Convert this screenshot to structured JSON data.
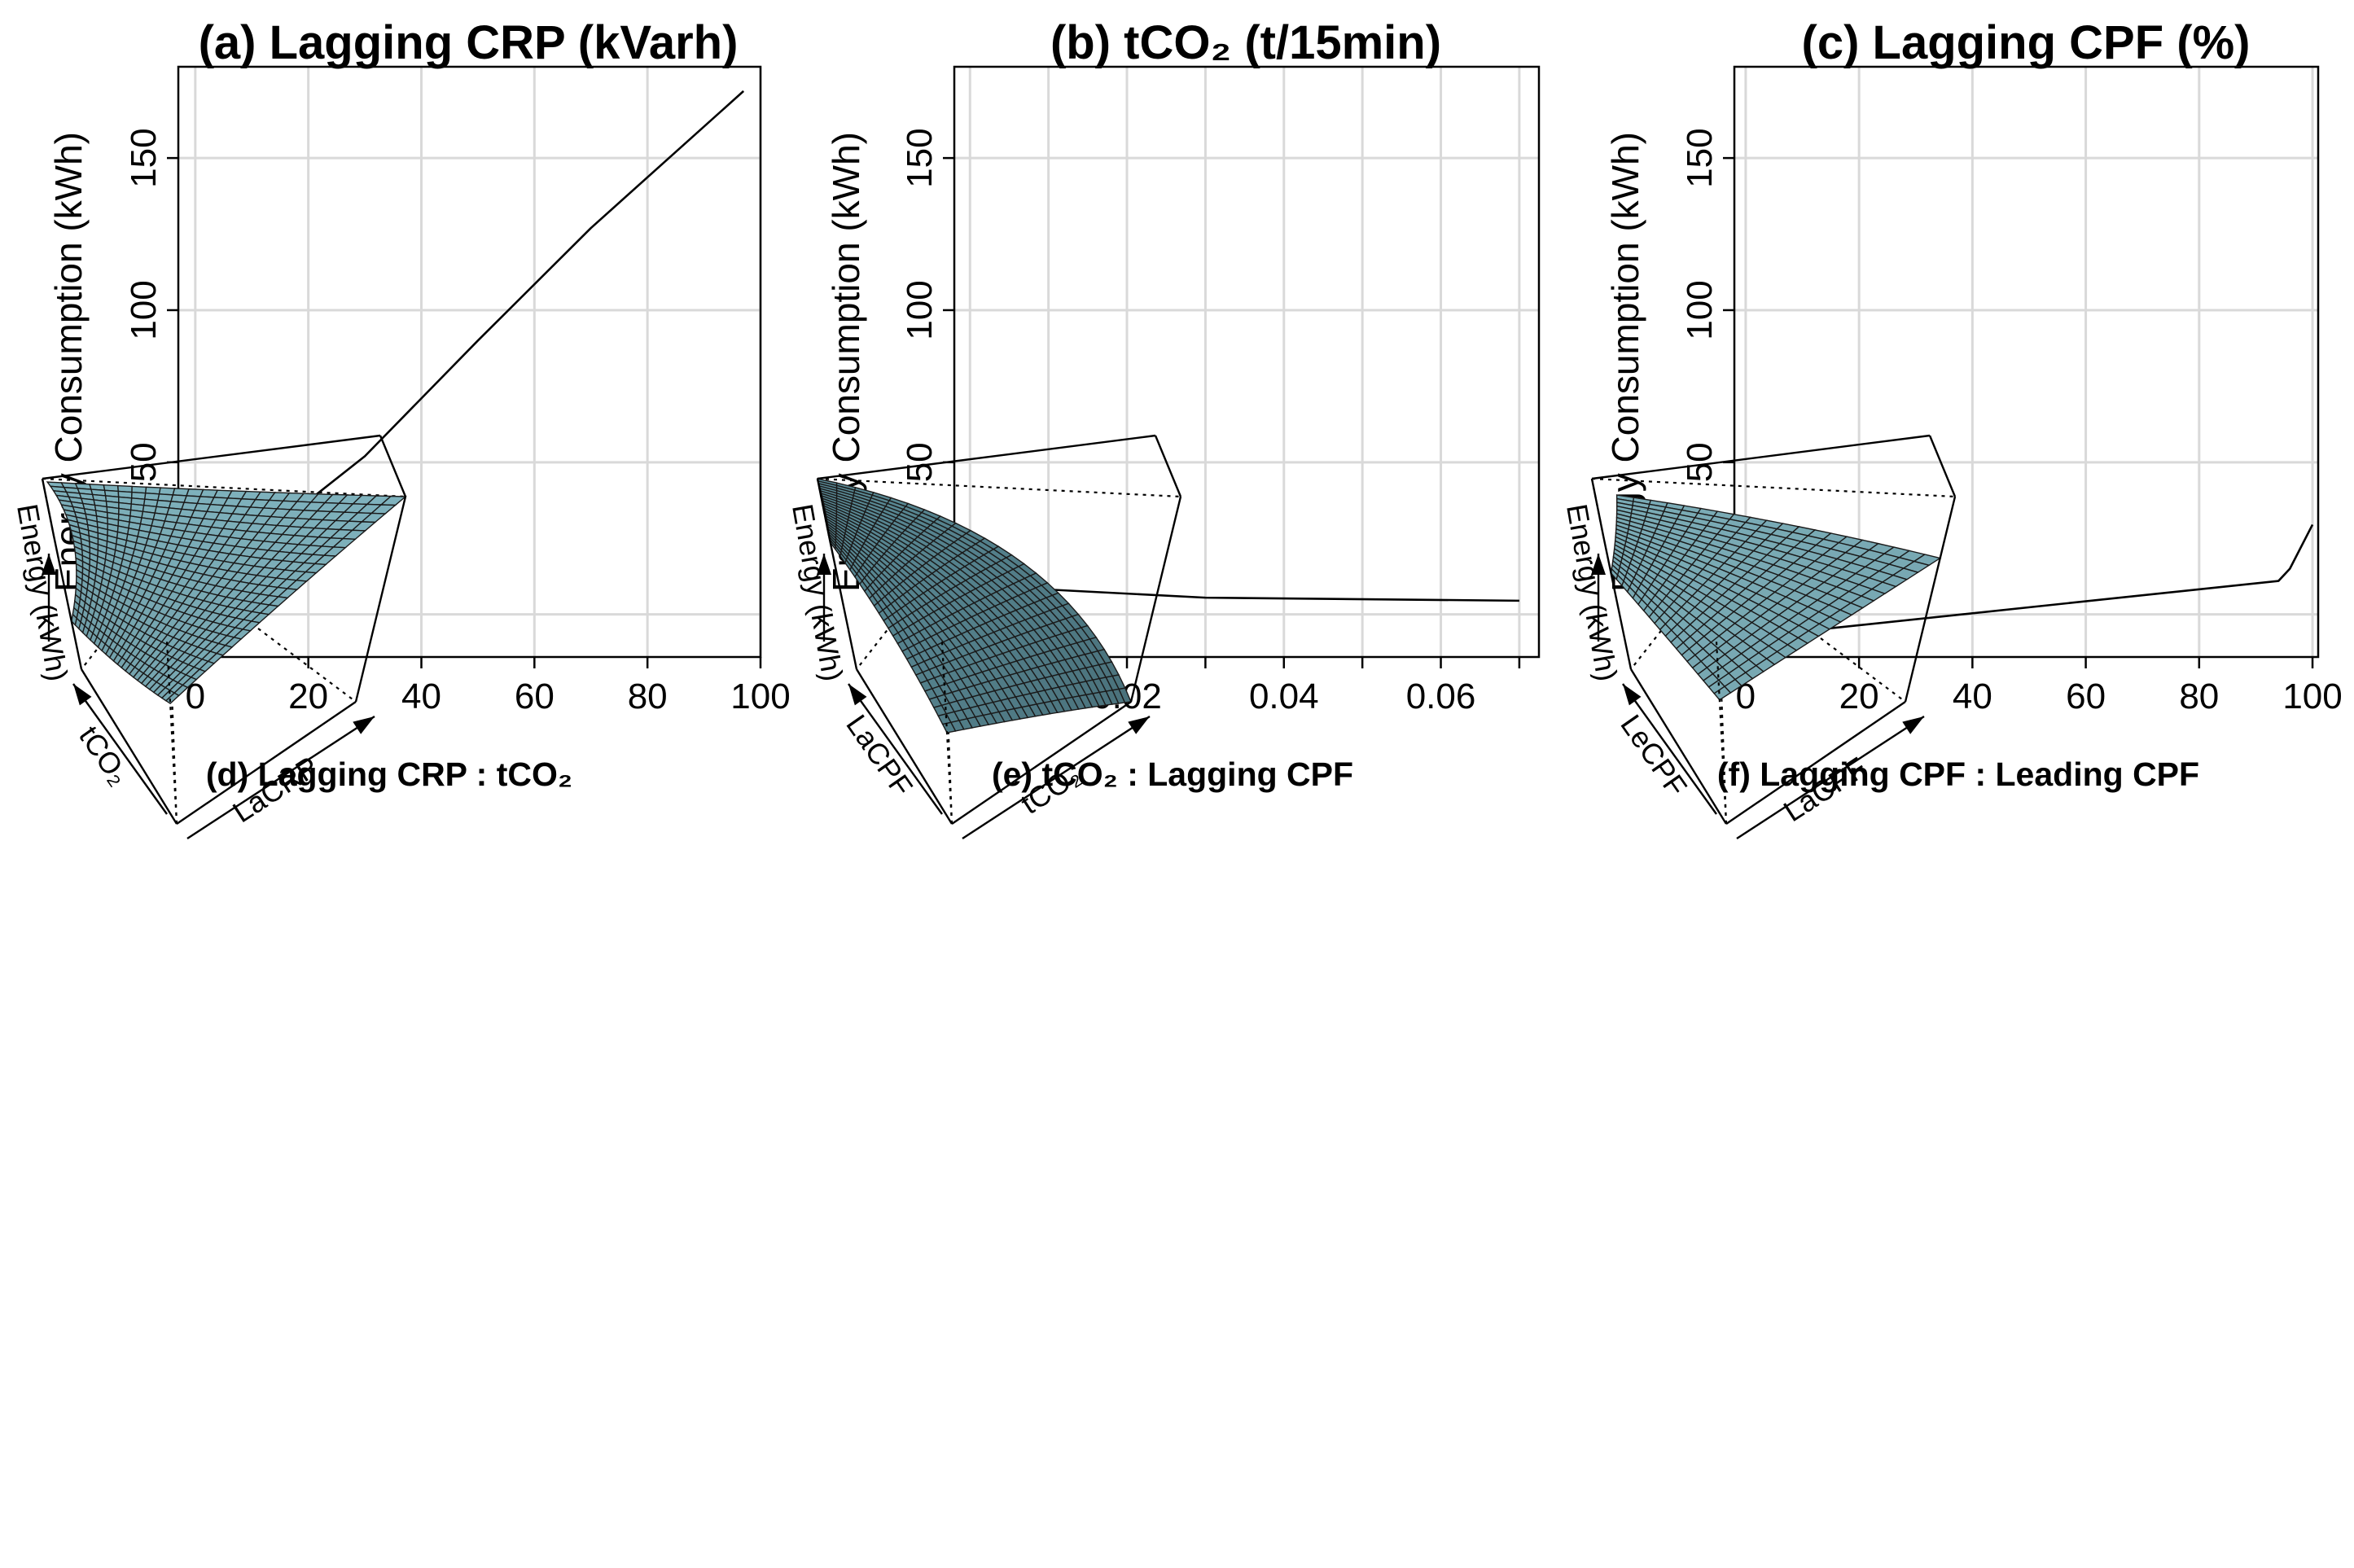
{
  "chart_data": [
    {
      "id": "a",
      "type": "line",
      "title": "(a) Lagging CRP (kVarh)",
      "xlabel": "",
      "ylabel": "Energy Consumption (kWh)",
      "x": [
        0,
        15,
        30,
        50,
        70,
        97
      ],
      "y": [
        -1,
        30,
        52,
        90,
        127,
        172
      ],
      "xlim": [
        -3,
        100
      ],
      "ylim": [
        -14,
        180
      ],
      "xticks": [
        0,
        20,
        40,
        60,
        80,
        100
      ],
      "xtick_labels": [
        "0",
        "20",
        "40",
        "60",
        "80",
        "100"
      ],
      "yticks": [
        0,
        50,
        100,
        150
      ],
      "ytick_labels": [
        "0",
        "50",
        "100",
        "150"
      ],
      "grid": true
    },
    {
      "id": "b",
      "type": "line",
      "title": "(b) tCO₂ (t/15min)",
      "xlabel": "",
      "ylabel": "Energy Consumption (kWh)",
      "x": [
        0.0,
        0.03,
        0.07
      ],
      "y": [
        9.5,
        5.5,
        4.5
      ],
      "xlim": [
        -0.002,
        0.0725
      ],
      "ylim": [
        -14,
        180
      ],
      "xticks": [
        0.0,
        0.02,
        0.04,
        0.06
      ],
      "xtick_labels": [
        "0.00",
        "0.02",
        "0.04",
        "0.06"
      ],
      "minor_xticks": [
        0.01,
        0.03,
        0.05,
        0.07
      ],
      "yticks": [
        0,
        50,
        100,
        150
      ],
      "ytick_labels": [
        "0",
        "50",
        "100",
        "150"
      ],
      "grid": true
    },
    {
      "id": "c",
      "type": "line",
      "title": "(c) Lagging CPF (%)",
      "xlabel": "",
      "ylabel": "Energy Consumption (kWh)",
      "x": [
        0,
        94,
        96,
        100
      ],
      "y": [
        -7.5,
        11,
        15,
        29.5
      ],
      "xlim": [
        -2,
        101
      ],
      "ylim": [
        -14,
        180
      ],
      "xticks": [
        0,
        20,
        40,
        60,
        80,
        100
      ],
      "xtick_labels": [
        "0",
        "20",
        "40",
        "60",
        "80",
        "100"
      ],
      "yticks": [
        0,
        50,
        100,
        150
      ],
      "ytick_labels": [
        "0",
        "50",
        "100",
        "150"
      ],
      "grid": true
    },
    {
      "id": "d",
      "type": "surface",
      "title": "(d) Lagging CRP : tCO₂",
      "xlabel": "LaCRP",
      "ylabel": "tCO₂",
      "zlabel": "Energy (kWh)",
      "grid_resolution": 25,
      "surface_color": "#7fb2bd",
      "corner_heights": {
        "x0y0": 0.66,
        "x1y0": 1.0,
        "x0y1": 0.36,
        "x1y1": 0.96
      },
      "curvature": -0.08
    },
    {
      "id": "e",
      "type": "surface",
      "title": "(e) tCO₂ : Lagging CPF",
      "xlabel": "tCO₂",
      "ylabel": "LaCPF",
      "zlabel": "Energy (kWh)",
      "grid_resolution": 25,
      "surface_color": "#5a8a96",
      "corner_heights": {
        "x0y0": 0.5,
        "x1y0": 0.0,
        "x0y1": 0.95,
        "x1y1": 1.0
      },
      "curvature": 0.05
    },
    {
      "id": "f",
      "type": "surface",
      "title": "(f) Lagging CPF : Leading CPF",
      "xlabel": "LaCPF",
      "ylabel": "LeCPF",
      "zlabel": "Energy (kWh)",
      "grid_resolution": 20,
      "surface_color": "#7fb2bd",
      "corner_heights": {
        "x0y0": 0.68,
        "x1y0": 0.7,
        "x0y1": 0.72,
        "x1y1": 0.8
      },
      "curvature": 0.02
    }
  ]
}
